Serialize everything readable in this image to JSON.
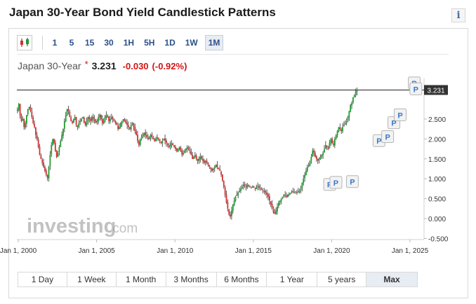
{
  "page_title": "Japan 30-Year Bond Yield Candlestick Patterns",
  "info_glyph": "i",
  "toolbar": {
    "chart_type_icon": "candlestick-icon",
    "intervals": [
      "1",
      "5",
      "15",
      "30",
      "1H",
      "5H",
      "1D",
      "1W",
      "1M"
    ],
    "active_interval": "1M"
  },
  "quote": {
    "name": "Japan 30-Year",
    "star": "*",
    "price": "3.231",
    "change": "-0.030",
    "change_pct": "(-0.92%)"
  },
  "colors": {
    "up": "#1b9e2f",
    "down": "#d43131",
    "neutral": "#333333",
    "price_tag_bg": "#333333",
    "pattern_marker_text": "#3a78c8"
  },
  "chart_data": {
    "type": "candlestick",
    "title": "",
    "xlabel": "",
    "ylabel": "",
    "x_ticks": [
      "Jan 1, 2000",
      "Jan 1, 2005",
      "Jan 1, 2010",
      "Jan 1, 2015",
      "Jan 1, 2020",
      "Jan 1, 2025"
    ],
    "x_tick_years": [
      2000,
      2005,
      2010,
      2015,
      2020,
      2025
    ],
    "xlim": [
      1999.9,
      2025.75
    ],
    "y_ticks": [
      "2.500",
      "2.000",
      "1.500",
      "1.000",
      "0.500",
      "0.000",
      "-0.500"
    ],
    "y_tick_values": [
      2.5,
      2.0,
      1.5,
      1.0,
      0.5,
      0.0,
      -0.5
    ],
    "ylim": [
      -0.6,
      3.4
    ],
    "last_price_label": "3.231",
    "last_price": 3.231,
    "series": [
      {
        "values_monthly_close": [
          2.75,
          2.88,
          2.6,
          2.45,
          2.5,
          2.3,
          2.4,
          2.6,
          2.75,
          2.8,
          2.7,
          2.55,
          2.4,
          2.3,
          2.1,
          2.0,
          1.8,
          1.6,
          1.5,
          1.4,
          1.3,
          1.2,
          1.1,
          1.02,
          1.3,
          1.6,
          1.85,
          2.0,
          1.9,
          1.7,
          1.55,
          1.65,
          1.8,
          1.95,
          2.1,
          2.25,
          2.45,
          2.6,
          2.75,
          2.7,
          2.55,
          2.45,
          2.4,
          2.5,
          2.55,
          2.35,
          2.3,
          2.4,
          2.45,
          2.5,
          2.55,
          2.4,
          2.35,
          2.45,
          2.55,
          2.5,
          2.45,
          2.55,
          2.5,
          2.45,
          2.4,
          2.45,
          2.55,
          2.6,
          2.5,
          2.4,
          2.45,
          2.55,
          2.6,
          2.55,
          2.45,
          2.5,
          2.55,
          2.5,
          2.45,
          2.4,
          2.35,
          2.25,
          2.3,
          2.4,
          2.45,
          2.5,
          2.45,
          2.4,
          2.35,
          2.3,
          2.25,
          2.35,
          2.4,
          2.3,
          2.2,
          2.1,
          1.95,
          1.85,
          2.0,
          2.05,
          2.1,
          2.15,
          2.1,
          2.05,
          2.0,
          2.05,
          2.1,
          2.05,
          2.0,
          1.95,
          2.0,
          2.05,
          2.0,
          1.95,
          1.9,
          1.95,
          2.0,
          1.95,
          1.9,
          1.85,
          1.8,
          1.85,
          1.9,
          1.85,
          1.8,
          1.75,
          1.7,
          1.75,
          1.8,
          1.7,
          1.6,
          1.65,
          1.7,
          1.75,
          1.8,
          1.75,
          1.7,
          1.6,
          1.5,
          1.55,
          1.6,
          1.5,
          1.45,
          1.5,
          1.55,
          1.5,
          1.45,
          1.4,
          1.45,
          1.4,
          1.35,
          1.3,
          1.25,
          1.2,
          1.25,
          1.3,
          1.35,
          1.3,
          1.25,
          1.2,
          1.1,
          0.95,
          0.8,
          0.6,
          0.4,
          0.25,
          0.1,
          0.05,
          0.2,
          0.35,
          0.45,
          0.55,
          0.6,
          0.65,
          0.7,
          0.75,
          0.8,
          0.85,
          0.82,
          0.8,
          0.85,
          0.82,
          0.8,
          0.78,
          0.8,
          0.78,
          0.75,
          0.8,
          0.82,
          0.78,
          0.75,
          0.72,
          0.7,
          0.68,
          0.65,
          0.6,
          0.55,
          0.45,
          0.35,
          0.25,
          0.15,
          0.12,
          0.2,
          0.3,
          0.4,
          0.45,
          0.5,
          0.55,
          0.6,
          0.58,
          0.55,
          0.6,
          0.62,
          0.65,
          0.68,
          0.66,
          0.65,
          0.68,
          0.66,
          0.68,
          0.7,
          0.75,
          0.9,
          1.0,
          1.1,
          1.2,
          1.3,
          1.35,
          1.45,
          1.55,
          1.7,
          1.65,
          1.55,
          1.5,
          1.45,
          1.5,
          1.55,
          1.6,
          1.65,
          1.75,
          1.85,
          1.8,
          1.75,
          1.9,
          2.0,
          1.9,
          1.85,
          2.0,
          2.1,
          2.2,
          2.3,
          2.25,
          2.2,
          2.3,
          2.35,
          2.4,
          2.45,
          2.55,
          2.7,
          2.85,
          2.9,
          3.05,
          3.1,
          3.2,
          3.231
        ]
      }
    ],
    "pattern_markers": [
      {
        "label": "P",
        "year": 2019.85,
        "value": 0.85
      },
      {
        "label": "P",
        "year": 2020.25,
        "value": 0.9
      },
      {
        "label": "P",
        "year": 2021.3,
        "value": 0.92
      },
      {
        "label": "P",
        "year": 2023.0,
        "value": 1.95
      },
      {
        "label": "P",
        "year": 2023.55,
        "value": 2.05
      },
      {
        "label": "P",
        "year": 2023.95,
        "value": 2.4
      },
      {
        "label": "P",
        "year": 2024.35,
        "value": 2.6
      },
      {
        "label": "P",
        "year": 2025.25,
        "value": 3.4
      },
      {
        "label": "P",
        "year": 2025.35,
        "value": 3.25
      }
    ],
    "watermark": {
      "main": "investing",
      "suffix": ".com"
    }
  },
  "range_buttons": [
    "1 Day",
    "1 Week",
    "1 Month",
    "3 Months",
    "6 Months",
    "1 Year",
    "5 years",
    "Max"
  ],
  "active_range": "Max"
}
